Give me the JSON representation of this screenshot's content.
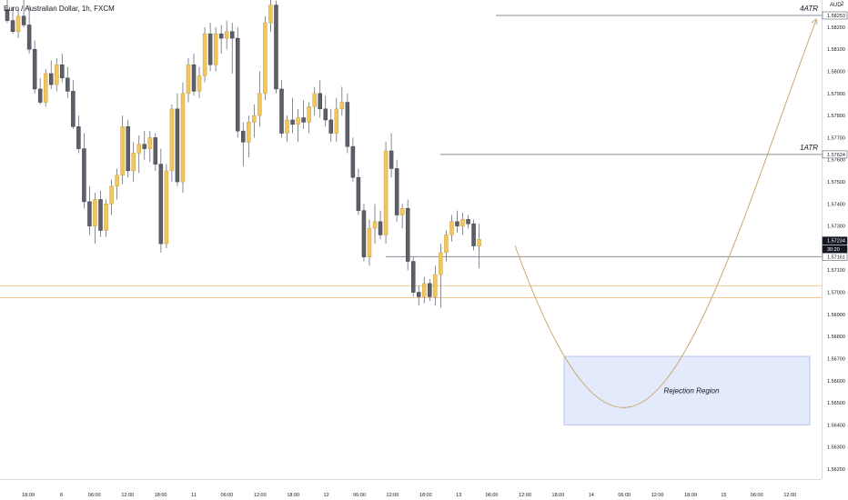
{
  "chart_title": "Euro / Australian Dollar, 1h, FXCM",
  "currency": "AUD",
  "currency_tag": "2",
  "colors": {
    "up": "#F2C65B",
    "down": "#5D6069",
    "wick": "#6a6d78",
    "curve": "#C9A96E",
    "zone_fill": "#E3EAFB",
    "zone_border": "#B9C6EE",
    "level": "#8a8d96",
    "hline": "#E6B66F"
  },
  "chart_data": {
    "type": "candlestick",
    "title": "Euro / Australian Dollar, 1h, FXCM",
    "y_range": [
      1.5615,
      1.5835
    ],
    "y_ticks": [
      "1.58200",
      "1.58100",
      "1.58000",
      "1.57900",
      "1.57800",
      "1.57700",
      "1.57600",
      "1.57500",
      "1.57400",
      "1.57300",
      "1.57200",
      "1.57100",
      "1.57000",
      "1.56900",
      "1.56800",
      "1.56700",
      "1.56600",
      "1.56500",
      "1.56400",
      "1.56300",
      "1.56200"
    ],
    "x_ticks": [
      "18:00",
      "8",
      "06:00",
      "12:00",
      "18:00",
      "11",
      "06:00",
      "12:00",
      "18:00",
      "12",
      "06:00",
      "12:00",
      "18:00",
      "13",
      "06:00",
      "12:00",
      "18:00",
      "14",
      "06:00",
      "12:00",
      "18:00",
      "15",
      "06:00",
      "12:00"
    ],
    "price_labels": [
      {
        "text": "1.58253",
        "value": 1.58253,
        "style": "box"
      },
      {
        "text": "1.57624",
        "value": 1.57624,
        "style": "box"
      },
      {
        "text": "1.57234",
        "value": 1.57234,
        "style": "dark"
      },
      {
        "text": "30:20",
        "value": 1.57196,
        "style": "dark"
      },
      {
        "text": "1.57161",
        "value": 1.57161,
        "style": "box"
      }
    ],
    "levels": [
      {
        "label": "4ATR",
        "value": 1.58253
      },
      {
        "label": "1ATR",
        "value": 1.57624
      }
    ],
    "horizontal_lines": [
      1.5703,
      1.56975
    ],
    "support_line": 1.57161,
    "rejection_region": {
      "label": "Rejection Region",
      "top": 1.5671,
      "bottom": 1.564
    },
    "candles": [
      {
        "o": 1.5828,
        "h": 1.5834,
        "l": 1.5822,
        "c": 1.5823
      },
      {
        "o": 1.5823,
        "h": 1.5829,
        "l": 1.5817,
        "c": 1.5818
      },
      {
        "o": 1.5818,
        "h": 1.5828,
        "l": 1.5815,
        "c": 1.5825
      },
      {
        "o": 1.5825,
        "h": 1.5833,
        "l": 1.582,
        "c": 1.5821
      },
      {
        "o": 1.5821,
        "h": 1.583,
        "l": 1.5808,
        "c": 1.581
      },
      {
        "o": 1.581,
        "h": 1.5814,
        "l": 1.579,
        "c": 1.5792
      },
      {
        "o": 1.5792,
        "h": 1.5797,
        "l": 1.5785,
        "c": 1.5786
      },
      {
        "o": 1.5786,
        "h": 1.5801,
        "l": 1.5784,
        "c": 1.5799
      },
      {
        "o": 1.5799,
        "h": 1.5805,
        "l": 1.5792,
        "c": 1.5794
      },
      {
        "o": 1.5794,
        "h": 1.5806,
        "l": 1.5791,
        "c": 1.5803
      },
      {
        "o": 1.5803,
        "h": 1.5808,
        "l": 1.5795,
        "c": 1.5797
      },
      {
        "o": 1.5797,
        "h": 1.5802,
        "l": 1.5788,
        "c": 1.5791
      },
      {
        "o": 1.5791,
        "h": 1.5796,
        "l": 1.5774,
        "c": 1.5775
      },
      {
        "o": 1.5775,
        "h": 1.578,
        "l": 1.5763,
        "c": 1.5765
      },
      {
        "o": 1.5765,
        "h": 1.5772,
        "l": 1.5738,
        "c": 1.5741
      },
      {
        "o": 1.5741,
        "h": 1.5748,
        "l": 1.5726,
        "c": 1.573
      },
      {
        "o": 1.573,
        "h": 1.5745,
        "l": 1.5722,
        "c": 1.5742
      },
      {
        "o": 1.5742,
        "h": 1.5746,
        "l": 1.5725,
        "c": 1.5728
      },
      {
        "o": 1.5728,
        "h": 1.5742,
        "l": 1.5725,
        "c": 1.574
      },
      {
        "o": 1.574,
        "h": 1.5751,
        "l": 1.5735,
        "c": 1.5748
      },
      {
        "o": 1.5748,
        "h": 1.5756,
        "l": 1.5742,
        "c": 1.5753
      },
      {
        "o": 1.5753,
        "h": 1.578,
        "l": 1.5749,
        "c": 1.5775
      },
      {
        "o": 1.5775,
        "h": 1.5778,
        "l": 1.5752,
        "c": 1.5755
      },
      {
        "o": 1.5755,
        "h": 1.5768,
        "l": 1.575,
        "c": 1.5763
      },
      {
        "o": 1.5763,
        "h": 1.5771,
        "l": 1.5754,
        "c": 1.5767
      },
      {
        "o": 1.5767,
        "h": 1.5773,
        "l": 1.576,
        "c": 1.5765
      },
      {
        "o": 1.5765,
        "h": 1.5773,
        "l": 1.5759,
        "c": 1.577
      },
      {
        "o": 1.577,
        "h": 1.5772,
        "l": 1.5755,
        "c": 1.5758
      },
      {
        "o": 1.5758,
        "h": 1.5765,
        "l": 1.5718,
        "c": 1.5722
      },
      {
        "o": 1.5722,
        "h": 1.5758,
        "l": 1.572,
        "c": 1.5755
      },
      {
        "o": 1.5755,
        "h": 1.5785,
        "l": 1.575,
        "c": 1.5783
      },
      {
        "o": 1.5783,
        "h": 1.579,
        "l": 1.5748,
        "c": 1.575
      },
      {
        "o": 1.575,
        "h": 1.5795,
        "l": 1.5745,
        "c": 1.579
      },
      {
        "o": 1.579,
        "h": 1.5806,
        "l": 1.5786,
        "c": 1.5803
      },
      {
        "o": 1.5803,
        "h": 1.5808,
        "l": 1.5789,
        "c": 1.5791
      },
      {
        "o": 1.5791,
        "h": 1.5802,
        "l": 1.5788,
        "c": 1.5798
      },
      {
        "o": 1.5798,
        "h": 1.582,
        "l": 1.5795,
        "c": 1.5817
      },
      {
        "o": 1.5817,
        "h": 1.5822,
        "l": 1.58,
        "c": 1.5803
      },
      {
        "o": 1.5803,
        "h": 1.582,
        "l": 1.58,
        "c": 1.5817
      },
      {
        "o": 1.5817,
        "h": 1.5821,
        "l": 1.5808,
        "c": 1.5815
      },
      {
        "o": 1.5815,
        "h": 1.5823,
        "l": 1.581,
        "c": 1.5818
      },
      {
        "o": 1.5818,
        "h": 1.5822,
        "l": 1.5799,
        "c": 1.5815
      },
      {
        "o": 1.5815,
        "h": 1.582,
        "l": 1.577,
        "c": 1.5773
      },
      {
        "o": 1.5773,
        "h": 1.5777,
        "l": 1.5757,
        "c": 1.5768
      },
      {
        "o": 1.5768,
        "h": 1.578,
        "l": 1.5761,
        "c": 1.5777
      },
      {
        "o": 1.5777,
        "h": 1.5785,
        "l": 1.577,
        "c": 1.578
      },
      {
        "o": 1.578,
        "h": 1.58,
        "l": 1.5775,
        "c": 1.579
      },
      {
        "o": 1.579,
        "h": 1.5825,
        "l": 1.5787,
        "c": 1.5822
      },
      {
        "o": 1.5822,
        "h": 1.5834,
        "l": 1.5818,
        "c": 1.583
      },
      {
        "o": 1.583,
        "h": 1.5832,
        "l": 1.579,
        "c": 1.5792
      },
      {
        "o": 1.5792,
        "h": 1.5796,
        "l": 1.577,
        "c": 1.5772
      },
      {
        "o": 1.5772,
        "h": 1.578,
        "l": 1.5768,
        "c": 1.5778
      },
      {
        "o": 1.5778,
        "h": 1.5788,
        "l": 1.5772,
        "c": 1.5776
      },
      {
        "o": 1.5776,
        "h": 1.5783,
        "l": 1.5768,
        "c": 1.5779
      },
      {
        "o": 1.5779,
        "h": 1.5787,
        "l": 1.5774,
        "c": 1.5777
      },
      {
        "o": 1.5777,
        "h": 1.5786,
        "l": 1.5772,
        "c": 1.5784
      },
      {
        "o": 1.5784,
        "h": 1.5793,
        "l": 1.578,
        "c": 1.579
      },
      {
        "o": 1.579,
        "h": 1.5796,
        "l": 1.5779,
        "c": 1.5783
      },
      {
        "o": 1.5783,
        "h": 1.5789,
        "l": 1.5775,
        "c": 1.5778
      },
      {
        "o": 1.5778,
        "h": 1.5783,
        "l": 1.5768,
        "c": 1.5772
      },
      {
        "o": 1.5772,
        "h": 1.5788,
        "l": 1.5768,
        "c": 1.5783
      },
      {
        "o": 1.5783,
        "h": 1.5793,
        "l": 1.578,
        "c": 1.5786
      },
      {
        "o": 1.5786,
        "h": 1.579,
        "l": 1.5763,
        "c": 1.5766
      },
      {
        "o": 1.5766,
        "h": 1.577,
        "l": 1.575,
        "c": 1.5752
      },
      {
        "o": 1.5752,
        "h": 1.5756,
        "l": 1.5735,
        "c": 1.5737
      },
      {
        "o": 1.5737,
        "h": 1.574,
        "l": 1.5714,
        "c": 1.5716
      },
      {
        "o": 1.5716,
        "h": 1.5733,
        "l": 1.5712,
        "c": 1.5729
      },
      {
        "o": 1.5729,
        "h": 1.574,
        "l": 1.5722,
        "c": 1.5732
      },
      {
        "o": 1.5732,
        "h": 1.5737,
        "l": 1.5724,
        "c": 1.5726
      },
      {
        "o": 1.5726,
        "h": 1.5768,
        "l": 1.5722,
        "c": 1.5764
      },
      {
        "o": 1.5764,
        "h": 1.5772,
        "l": 1.5752,
        "c": 1.5756
      },
      {
        "o": 1.5756,
        "h": 1.576,
        "l": 1.5732,
        "c": 1.5735
      },
      {
        "o": 1.5735,
        "h": 1.574,
        "l": 1.5729,
        "c": 1.5738
      },
      {
        "o": 1.5738,
        "h": 1.5742,
        "l": 1.571,
        "c": 1.5714
      },
      {
        "o": 1.5714,
        "h": 1.5716,
        "l": 1.5698,
        "c": 1.57
      },
      {
        "o": 1.57,
        "h": 1.5703,
        "l": 1.5694,
        "c": 1.5698
      },
      {
        "o": 1.5698,
        "h": 1.5707,
        "l": 1.5695,
        "c": 1.5704
      },
      {
        "o": 1.5704,
        "h": 1.5706,
        "l": 1.5696,
        "c": 1.5698
      },
      {
        "o": 1.5698,
        "h": 1.5712,
        "l": 1.5694,
        "c": 1.5708
      },
      {
        "o": 1.5708,
        "h": 1.5722,
        "l": 1.5693,
        "c": 1.5718
      },
      {
        "o": 1.5718,
        "h": 1.5728,
        "l": 1.5714,
        "c": 1.5726
      },
      {
        "o": 1.5726,
        "h": 1.5735,
        "l": 1.5723,
        "c": 1.5732
      },
      {
        "o": 1.5732,
        "h": 1.5737,
        "l": 1.5727,
        "c": 1.573
      },
      {
        "o": 1.573,
        "h": 1.5736,
        "l": 1.5726,
        "c": 1.5733
      },
      {
        "o": 1.5733,
        "h": 1.5735,
        "l": 1.5729,
        "c": 1.5731
      },
      {
        "o": 1.5731,
        "h": 1.5733,
        "l": 1.5719,
        "c": 1.5721
      },
      {
        "o": 1.5721,
        "h": 1.5731,
        "l": 1.5711,
        "c": 1.5724
      }
    ]
  }
}
